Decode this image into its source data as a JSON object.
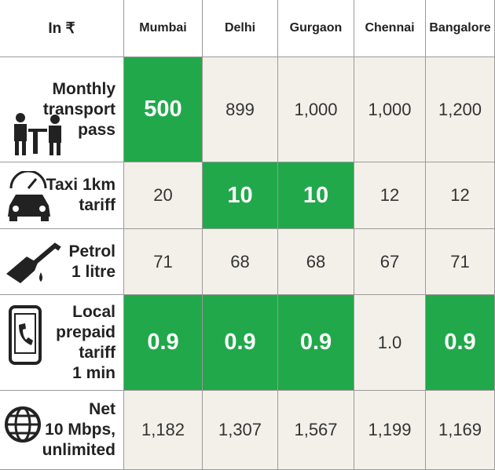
{
  "table": {
    "corner": "In ₹",
    "columns": [
      "Mumbai",
      "Delhi",
      "Gurgaon",
      "Chennai",
      "Bangalore"
    ],
    "rows": [
      {
        "label": "Monthly\ntransport\npass",
        "values": [
          "500",
          "899",
          "1,000",
          "1,000",
          "1,200"
        ],
        "highlight": [
          true,
          false,
          false,
          false,
          false
        ]
      },
      {
        "label": "Taxi 1km\ntariff",
        "values": [
          "20",
          "10",
          "10",
          "12",
          "12"
        ],
        "highlight": [
          false,
          true,
          true,
          false,
          false
        ]
      },
      {
        "label": "Petrol\n1 litre",
        "values": [
          "71",
          "68",
          "68",
          "67",
          "71"
        ],
        "highlight": [
          false,
          false,
          false,
          false,
          false
        ]
      },
      {
        "label": "Local\nprepaid\ntariff\n1 min",
        "values": [
          "0.9",
          "0.9",
          "0.9",
          "1.0",
          "0.9"
        ],
        "highlight": [
          true,
          true,
          true,
          false,
          true
        ]
      },
      {
        "label": "Net\n10 Mbps,\nunlimited",
        "values": [
          "1,182",
          "1,307",
          "1,567",
          "1,199",
          "1,169"
        ],
        "highlight": [
          false,
          false,
          false,
          false,
          false
        ]
      }
    ]
  }
}
